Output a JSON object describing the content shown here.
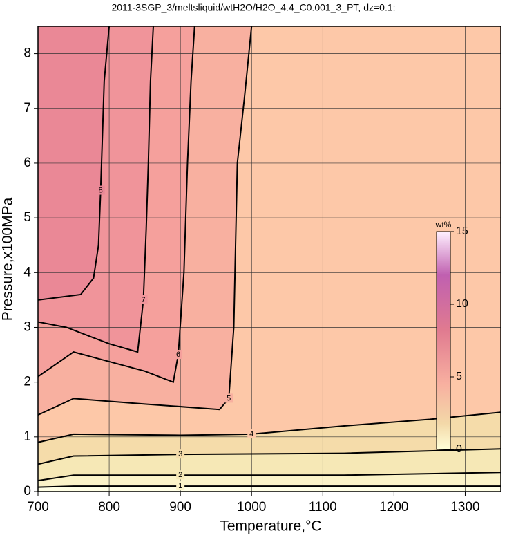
{
  "chart_data": {
    "type": "contour",
    "title": "2011-3SGP_3/meltsliquid/wtH2O/H2O_4.4_C0.001_3_PT, dz=0.1:",
    "xlabel": "Temperature,°C",
    "ylabel": "Pressure,x100MPa",
    "xlim": [
      700,
      1350
    ],
    "xticks": [
      700,
      800,
      900,
      1000,
      1100,
      1200,
      1300
    ],
    "ylim": [
      0,
      8.5
    ],
    "yticks": [
      0,
      1,
      2,
      3,
      4,
      5,
      6,
      7,
      8
    ],
    "grid": true,
    "background": "#ffffe6",
    "contours": [
      {
        "level": 1,
        "color": "#fbf3c8",
        "x": [
          700,
          750,
          900,
          1100,
          1350
        ],
        "y": [
          0.08,
          0.1,
          0.1,
          0.1,
          0.1
        ]
      },
      {
        "level": 2,
        "color": "#f6e8b6",
        "x": [
          700,
          750,
          900,
          1130,
          1350
        ],
        "y": [
          0.2,
          0.3,
          0.3,
          0.3,
          0.35
        ]
      },
      {
        "level": 3,
        "color": "#f5dcaa",
        "x": [
          700,
          750,
          900,
          1130,
          1350
        ],
        "y": [
          0.5,
          0.65,
          0.68,
          0.7,
          0.78
        ]
      },
      {
        "level": 4,
        "color": "#fdc8a8",
        "x": [
          700,
          750,
          900,
          1000,
          1130,
          1250,
          1350
        ],
        "y": [
          0.9,
          1.05,
          1.03,
          1.05,
          1.2,
          1.32,
          1.45
        ]
      },
      {
        "level": 5,
        "color": "#f8b0a0",
        "x": [
          700,
          750,
          850,
          955,
          968,
          975,
          980,
          990,
          1000
        ],
        "y": [
          1.4,
          1.7,
          1.6,
          1.5,
          1.7,
          3.0,
          6.0,
          7.2,
          8.5
        ]
      },
      {
        "level": 6,
        "color": "#f5a09c",
        "x": [
          700,
          750,
          850,
          890,
          897,
          905,
          910,
          915,
          920
        ],
        "y": [
          2.1,
          2.55,
          2.2,
          2.0,
          2.5,
          4.0,
          6.0,
          7.5,
          8.5
        ]
      },
      {
        "level": 7,
        "color": "#f0949a",
        "x": [
          700,
          740,
          800,
          840,
          848,
          852,
          855,
          858,
          862
        ],
        "y": [
          3.1,
          3.0,
          2.7,
          2.55,
          3.5,
          4.8,
          6.0,
          7.5,
          8.5
        ]
      },
      {
        "level": 8,
        "color": "#ea8896",
        "x": [
          700,
          760,
          778,
          785,
          788,
          790,
          793,
          800
        ],
        "y": [
          3.5,
          3.6,
          3.9,
          4.5,
          5.5,
          6.3,
          7.5,
          8.5
        ]
      }
    ],
    "colorbar": {
      "label": "wt%",
      "lim": [
        0,
        15
      ],
      "ticks": [
        0,
        5,
        10,
        15
      ]
    }
  }
}
